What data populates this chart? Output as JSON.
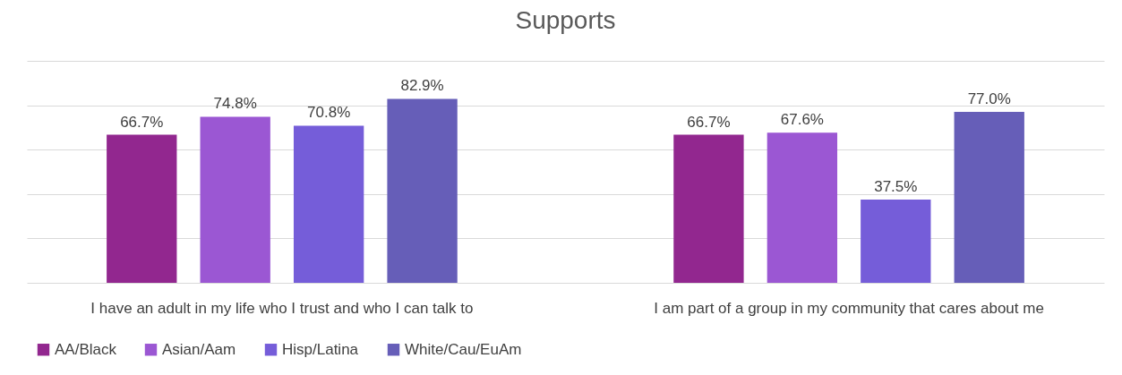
{
  "chart_data": {
    "type": "bar",
    "title": "Supports",
    "categories": [
      "I have an adult in my life who I trust and who I can talk to",
      "I am part of a group in my community that cares about me"
    ],
    "series": [
      {
        "name": "AA/Black",
        "color": "#92278f",
        "values": [
          66.7,
          66.7
        ],
        "value_labels": [
          "66.7%",
          "66.7%"
        ]
      },
      {
        "name": "Asian/Aam",
        "color": "#9b57d3",
        "values": [
          74.8,
          67.6
        ],
        "value_labels": [
          "74.8%",
          "67.6%"
        ]
      },
      {
        "name": "Hisp/Latina",
        "color": "#755dd9",
        "values": [
          70.8,
          37.5
        ],
        "value_labels": [
          "70.8%",
          "37.5%"
        ]
      },
      {
        "name": "White/Cau/EuAm",
        "color": "#665eb8",
        "values": [
          82.9,
          77.0
        ],
        "value_labels": [
          "82.9%",
          "77.0%"
        ]
      }
    ],
    "ylim": [
      0,
      100
    ],
    "yticks": [
      {
        "value": 0,
        "label": null
      },
      {
        "value": 20,
        "label": null
      },
      {
        "value": 40,
        "label": null
      },
      {
        "value": 60,
        "label": null
      },
      {
        "value": 80,
        "label": null
      },
      {
        "value": 100,
        "label": null
      }
    ],
    "grid": "y",
    "tick_labels": "x",
    "legend": "bottom"
  }
}
